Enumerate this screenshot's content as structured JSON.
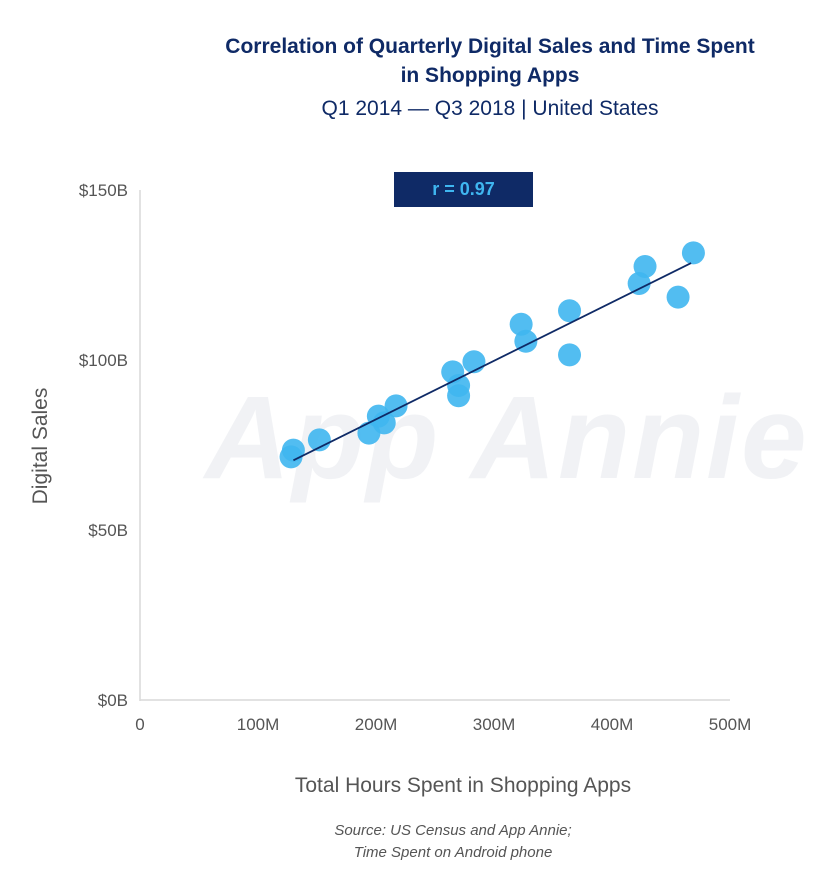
{
  "header": {
    "title_line1": "Correlation of Quarterly Digital Sales and Time Spent",
    "title_line2": "in Shopping Apps",
    "subtitle": "Q1 2014 — Q3 2018 | United States"
  },
  "annotation": {
    "correlation": "r = 0.97"
  },
  "watermark": "App Annie",
  "source": {
    "line1": "Source: US Census and App Annie;",
    "line2": "Time Spent on Android phone"
  },
  "colors": {
    "title": "#0f2a66",
    "point": "#3fb6f0",
    "trendline": "#0f2a66",
    "axis": "#d9d9d9",
    "tick_text": "#555555"
  },
  "chart_data": {
    "type": "scatter",
    "title": "Correlation of Quarterly Digital Sales and Time Spent in Shopping Apps",
    "subtitle": "Q1 2014 — Q3 2018 | United States",
    "xlabel": "Total Hours Spent in Shopping Apps",
    "ylabel": "Digital Sales",
    "xlim": [
      0,
      500
    ],
    "ylim": [
      0,
      150
    ],
    "x_ticks": [
      0,
      100,
      200,
      300,
      400,
      500
    ],
    "x_tick_labels": [
      "0",
      "100M",
      "200M",
      "300M",
      "400M",
      "500M"
    ],
    "y_ticks": [
      0,
      50,
      100,
      150
    ],
    "y_tick_labels": [
      "$0B",
      "$50B",
      "$100B",
      "$150B"
    ],
    "grid": false,
    "trendline": {
      "x": [
        130,
        467
      ],
      "y": [
        70.5,
        128.5
      ]
    },
    "points": [
      {
        "x": 128,
        "y": 71.5
      },
      {
        "x": 130,
        "y": 73.5
      },
      {
        "x": 152,
        "y": 76.5
      },
      {
        "x": 194,
        "y": 78.5
      },
      {
        "x": 202,
        "y": 83.5
      },
      {
        "x": 207,
        "y": 81.5
      },
      {
        "x": 217,
        "y": 86.5
      },
      {
        "x": 265,
        "y": 96.5
      },
      {
        "x": 270,
        "y": 92.5
      },
      {
        "x": 270,
        "y": 89.5
      },
      {
        "x": 283,
        "y": 99.5
      },
      {
        "x": 323,
        "y": 110.5
      },
      {
        "x": 327,
        "y": 105.5
      },
      {
        "x": 364,
        "y": 114.5
      },
      {
        "x": 364,
        "y": 101.5
      },
      {
        "x": 423,
        "y": 122.5
      },
      {
        "x": 428,
        "y": 127.5
      },
      {
        "x": 456,
        "y": 118.5
      },
      {
        "x": 469,
        "y": 131.5
      }
    ]
  }
}
